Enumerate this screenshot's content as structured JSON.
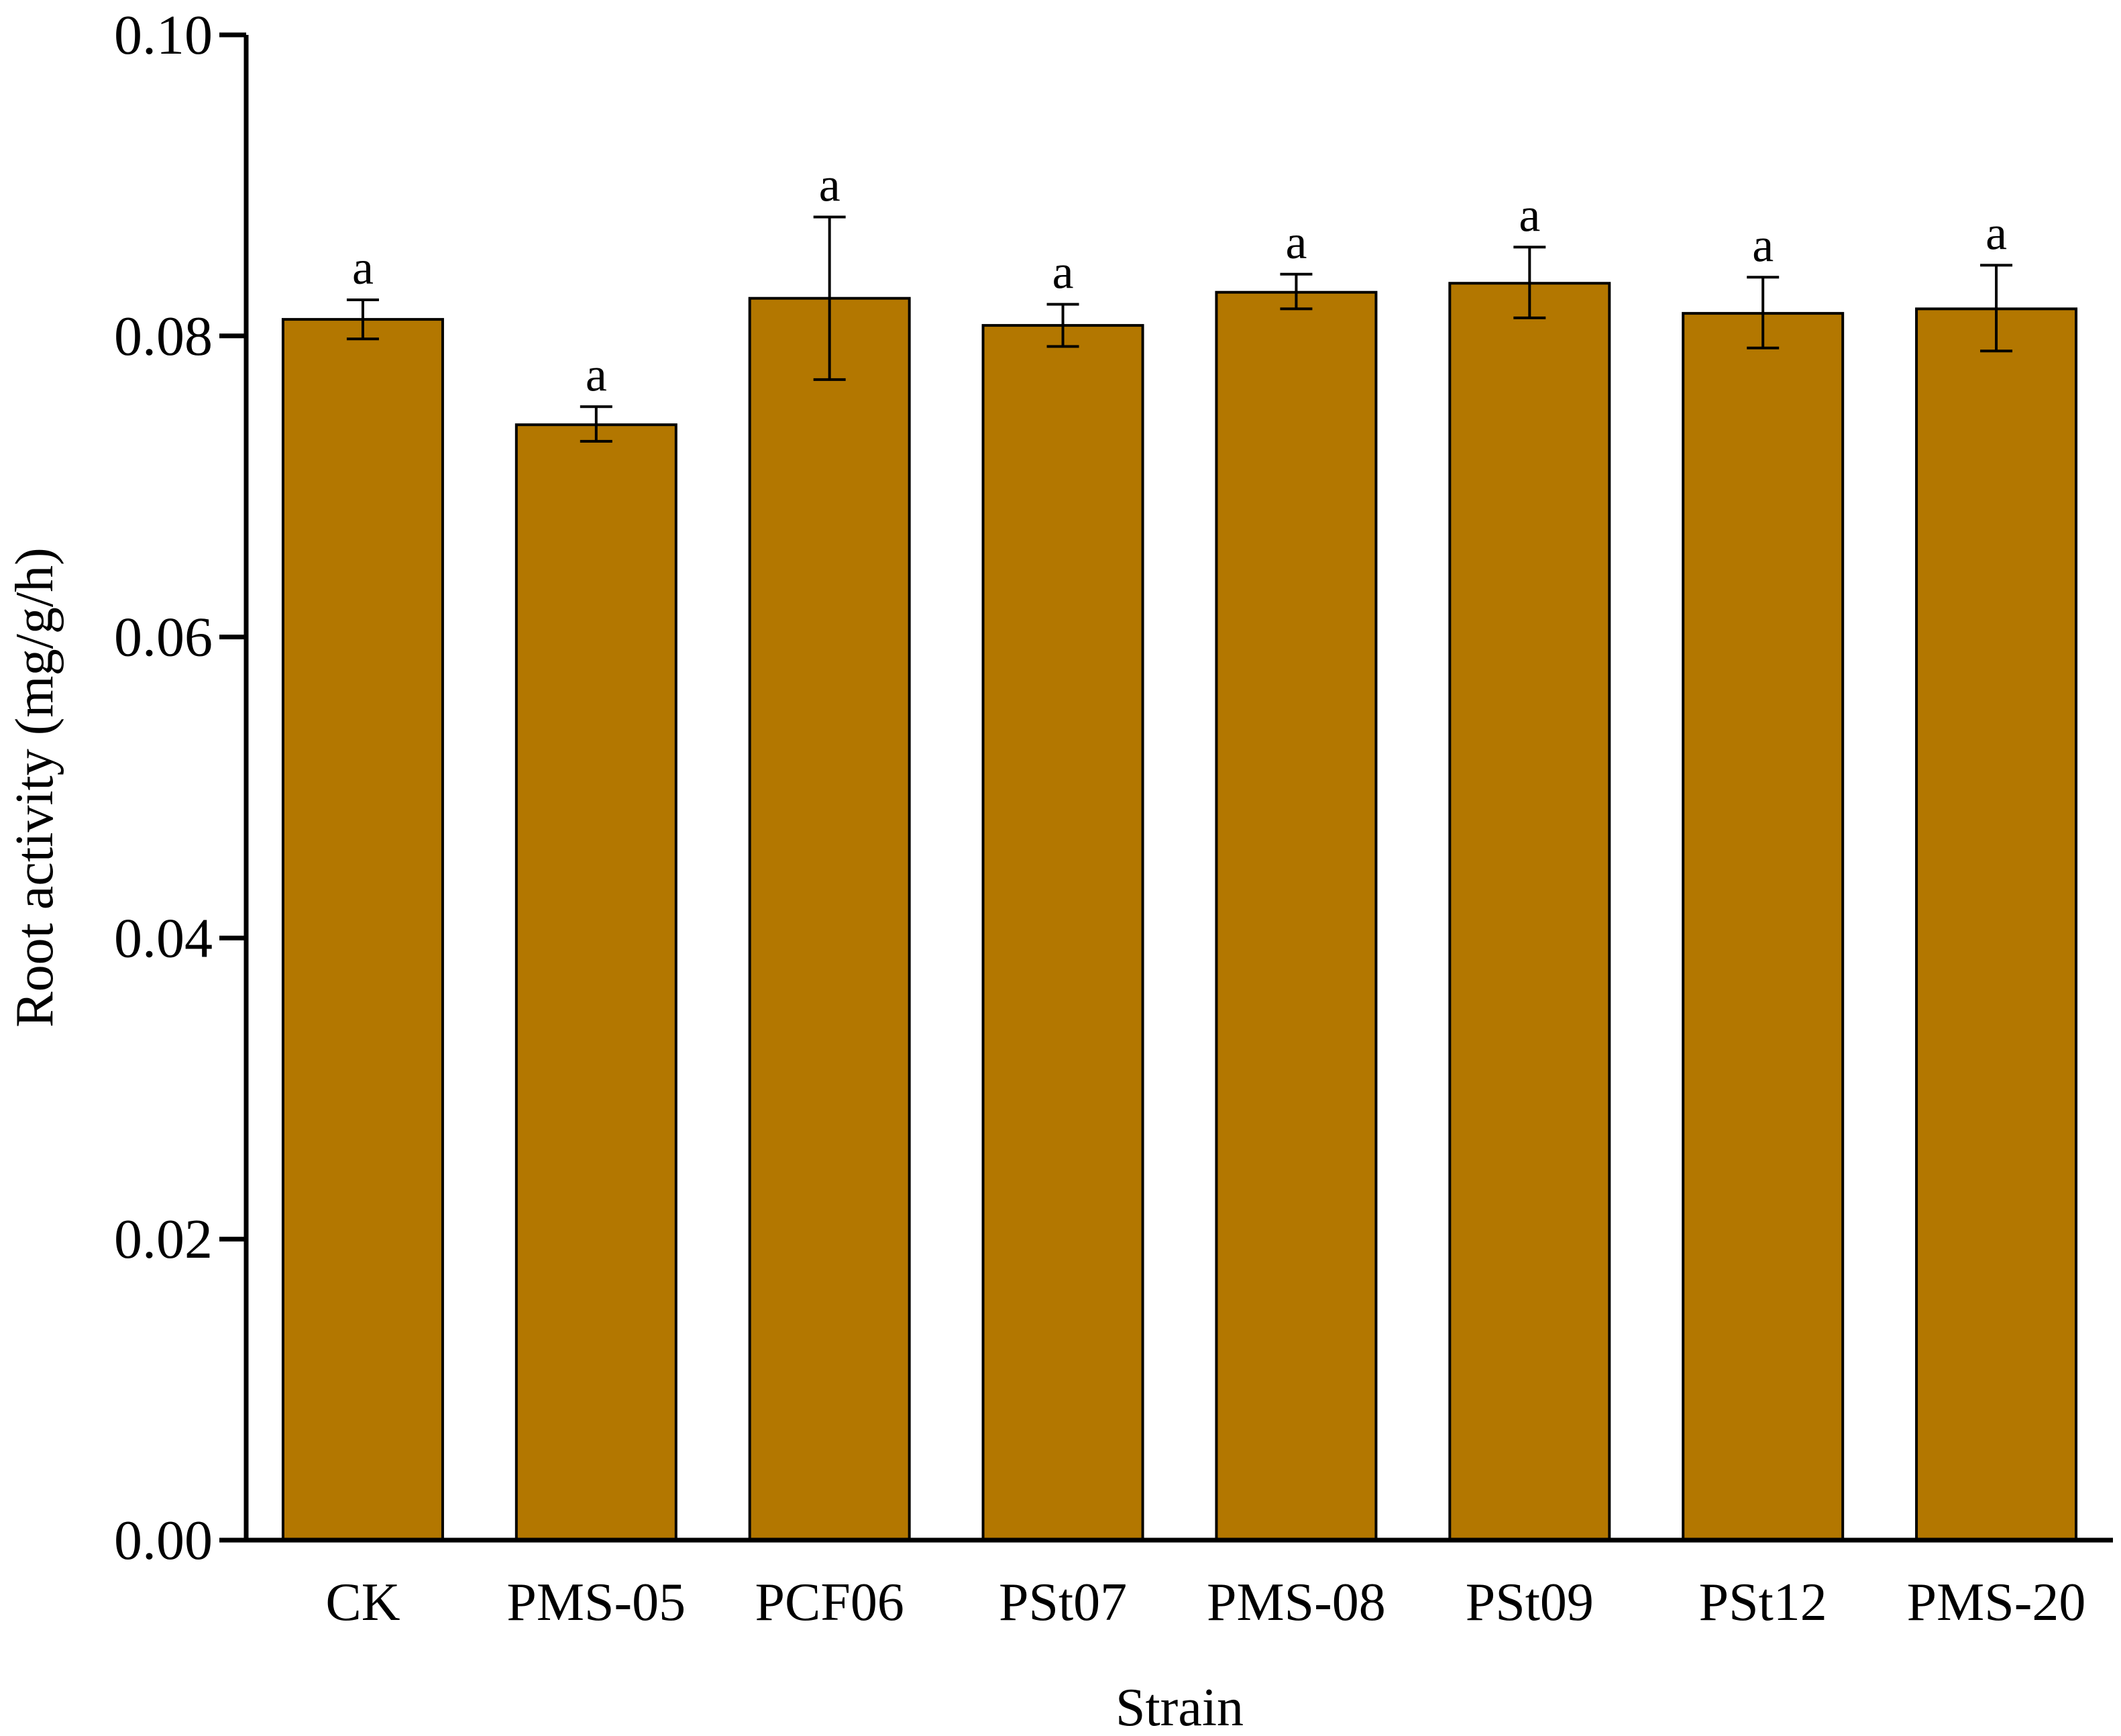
{
  "chart_data": {
    "type": "bar",
    "title": "",
    "xlabel": "Strain",
    "ylabel": "Root activity (mg/g/h)",
    "ylim": [
      0,
      0.1
    ],
    "yticks": [
      "0.00",
      "0.02",
      "0.04",
      "0.06",
      "0.08",
      "0.10"
    ],
    "categories": [
      "CK",
      "PMS-05",
      "PCF06",
      "PSt07",
      "PMS-08",
      "PSt09",
      "PSt12",
      "PMS-20"
    ],
    "values": [
      0.0811,
      0.0741,
      0.0825,
      0.0807,
      0.0829,
      0.0835,
      0.0815,
      0.0818
    ],
    "error_upper": [
      0.0824,
      0.0753,
      0.0879,
      0.0821,
      0.0841,
      0.0859,
      0.0839,
      0.0847
    ],
    "error_lower": [
      0.0798,
      0.073,
      0.0771,
      0.0793,
      0.0818,
      0.0812,
      0.0792,
      0.079
    ],
    "significance": [
      "a",
      "a",
      "a",
      "a",
      "a",
      "a",
      "a",
      "a"
    ],
    "bar_color": "#B37700",
    "grid": false,
    "legend": "none"
  }
}
